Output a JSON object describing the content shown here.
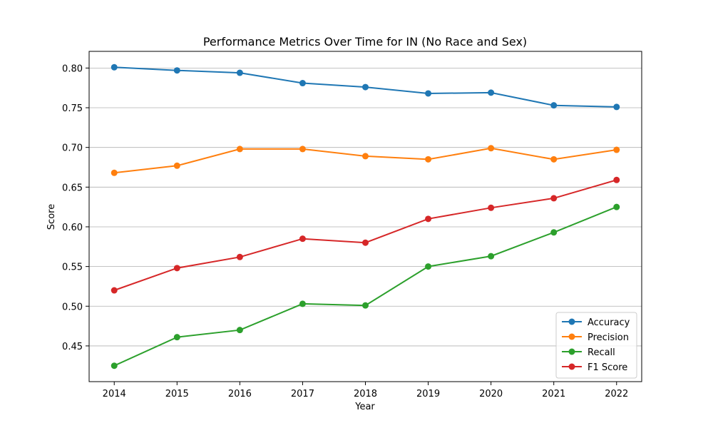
{
  "chart_data": {
    "type": "line",
    "title": "Performance Metrics Over Time for IN (No Race and Sex)",
    "xlabel": "Year",
    "ylabel": "Score",
    "x": [
      2014,
      2015,
      2016,
      2017,
      2018,
      2019,
      2020,
      2021,
      2022
    ],
    "xlim": [
      2013.6,
      2022.4
    ],
    "ylim": [
      0.405,
      0.821
    ],
    "yticks": [
      0.45,
      0.5,
      0.55,
      0.6,
      0.65,
      0.7,
      0.75,
      0.8
    ],
    "ytick_labels": [
      "0.45",
      "0.50",
      "0.55",
      "0.60",
      "0.65",
      "0.70",
      "0.75",
      "0.80"
    ],
    "xtick_labels": [
      "2014",
      "2015",
      "2016",
      "2017",
      "2018",
      "2019",
      "2020",
      "2021",
      "2022"
    ],
    "grid": "y-major",
    "legend_position": "lower-right",
    "series": [
      {
        "name": "Accuracy",
        "color": "#1f77b4",
        "values": [
          0.801,
          0.797,
          0.794,
          0.781,
          0.776,
          0.768,
          0.769,
          0.753,
          0.751
        ]
      },
      {
        "name": "Precision",
        "color": "#ff7f0e",
        "values": [
          0.668,
          0.677,
          0.698,
          0.698,
          0.689,
          0.685,
          0.699,
          0.685,
          0.697
        ]
      },
      {
        "name": "Recall",
        "color": "#2ca02c",
        "values": [
          0.425,
          0.461,
          0.47,
          0.503,
          0.501,
          0.55,
          0.563,
          0.593,
          0.625
        ]
      },
      {
        "name": "F1 Score",
        "color": "#d62728",
        "values": [
          0.52,
          0.548,
          0.562,
          0.585,
          0.58,
          0.61,
          0.624,
          0.636,
          0.659
        ]
      }
    ]
  }
}
